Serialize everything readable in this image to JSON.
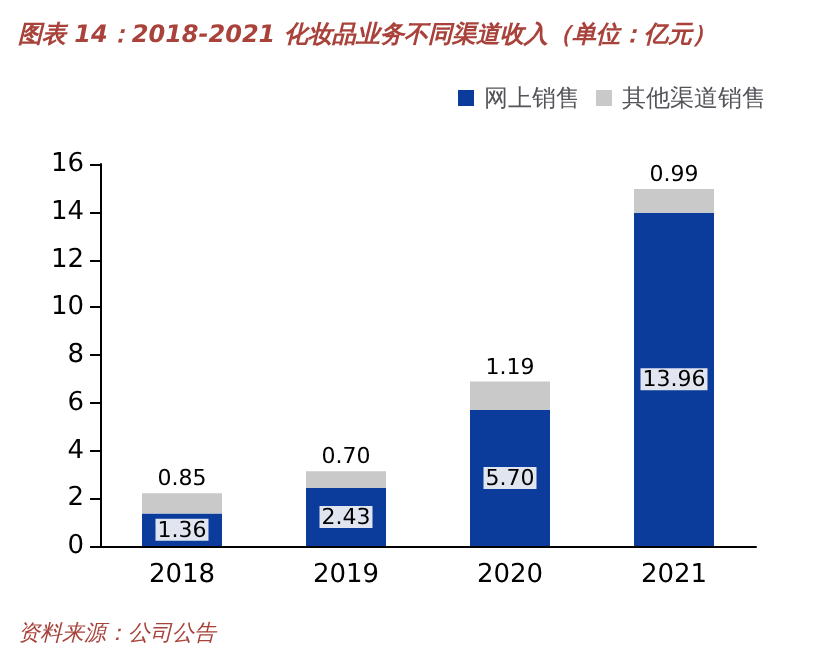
{
  "chart_data": {
    "type": "bar",
    "title": "图表 14：2018-2021 化妆品业务不同渠道收入（单位：亿元）",
    "categories": [
      "2018",
      "2019",
      "2020",
      "2021"
    ],
    "stacked": true,
    "series": [
      {
        "name": "网上销售",
        "color": "#0b3c9c",
        "values": [
          1.36,
          2.43,
          5.7,
          13.96
        ],
        "value_labels": [
          "1.36",
          "2.43",
          "5.70",
          "13.96"
        ]
      },
      {
        "name": "其他渠道销售",
        "color": "#c9c9c9",
        "values": [
          0.85,
          0.7,
          1.19,
          0.99
        ],
        "value_labels": [
          "0.85",
          "0.70",
          "1.19",
          "0.99"
        ]
      }
    ],
    "ylim": [
      0,
      16
    ],
    "yticks": [
      0,
      2,
      4,
      6,
      8,
      10,
      12,
      14,
      16
    ],
    "grid": false,
    "legend": "top right",
    "annotations": [
      "资料来源：公司公告"
    ]
  }
}
